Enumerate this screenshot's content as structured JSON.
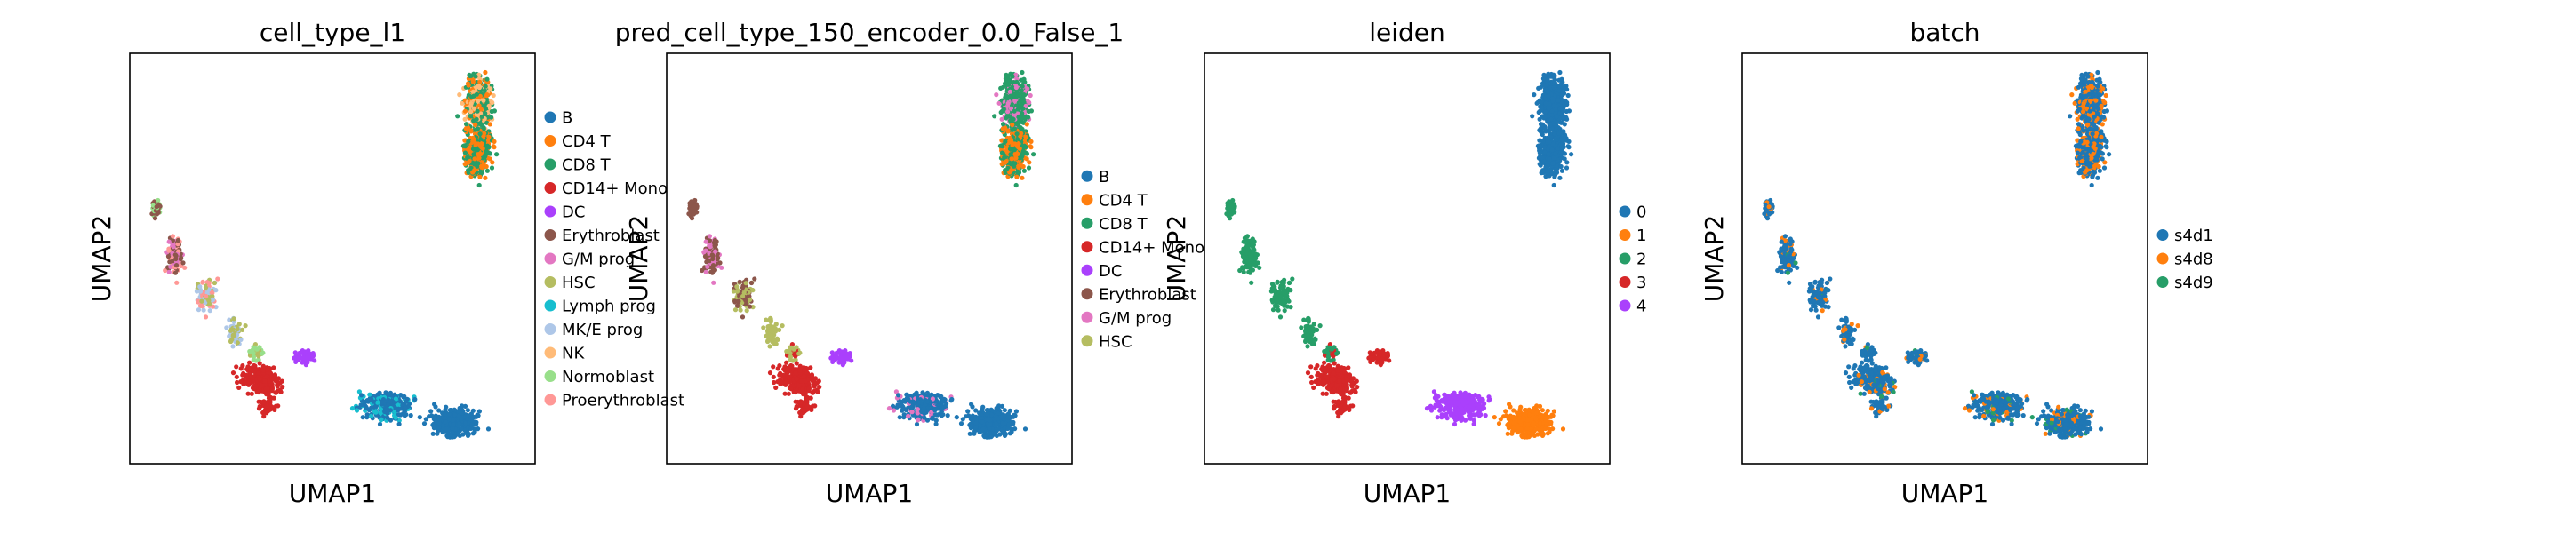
{
  "chart_data": [
    {
      "type": "scatter",
      "title": "cell_type_l1",
      "xlabel": "UMAP1",
      "ylabel": "UMAP2",
      "grid": false,
      "legend_position": "right",
      "series": [
        {
          "name": "B",
          "color": "#1f77b4"
        },
        {
          "name": "CD4 T",
          "color": "#ff7f0e"
        },
        {
          "name": "CD8 T",
          "color": "#279e68"
        },
        {
          "name": "CD14+ Mono",
          "color": "#d62728"
        },
        {
          "name": "DC",
          "color": "#aa40fc"
        },
        {
          "name": "Erythroblast",
          "color": "#8c564b"
        },
        {
          "name": "G/M prog",
          "color": "#e377c2"
        },
        {
          "name": "HSC",
          "color": "#b5bd61"
        },
        {
          "name": "Lymph prog",
          "color": "#17becf"
        },
        {
          "name": "MK/E prog",
          "color": "#aec7e8"
        },
        {
          "name": "NK",
          "color": "#ffbb78"
        },
        {
          "name": "Normoblast",
          "color": "#98df8a"
        },
        {
          "name": "Proerythroblast",
          "color": "#ff9896"
        }
      ]
    },
    {
      "type": "scatter",
      "title": "pred_cell_type_150_encoder_0.0_False_1",
      "xlabel": "UMAP1",
      "ylabel": "UMAP2",
      "grid": false,
      "legend_position": "right",
      "series": [
        {
          "name": "B",
          "color": "#1f77b4"
        },
        {
          "name": "CD4 T",
          "color": "#ff7f0e"
        },
        {
          "name": "CD8 T",
          "color": "#279e68"
        },
        {
          "name": "CD14+ Mono",
          "color": "#d62728"
        },
        {
          "name": "DC",
          "color": "#aa40fc"
        },
        {
          "name": "Erythroblast",
          "color": "#8c564b"
        },
        {
          "name": "G/M prog",
          "color": "#e377c2"
        },
        {
          "name": "HSC",
          "color": "#b5bd61"
        }
      ]
    },
    {
      "type": "scatter",
      "title": "leiden",
      "xlabel": "UMAP1",
      "ylabel": "UMAP2",
      "grid": false,
      "legend_position": "right",
      "series": [
        {
          "name": "0",
          "color": "#1f77b4"
        },
        {
          "name": "1",
          "color": "#ff7f0e"
        },
        {
          "name": "2",
          "color": "#279e68"
        },
        {
          "name": "3",
          "color": "#d62728"
        },
        {
          "name": "4",
          "color": "#aa40fc"
        }
      ]
    },
    {
      "type": "scatter",
      "title": "batch",
      "xlabel": "UMAP1",
      "ylabel": "UMAP2",
      "grid": false,
      "legend_position": "right",
      "series": [
        {
          "name": "s4d1",
          "color": "#1f77b4"
        },
        {
          "name": "s4d8",
          "color": "#ff7f0e"
        },
        {
          "name": "s4d9",
          "color": "#279e68"
        }
      ]
    }
  ]
}
